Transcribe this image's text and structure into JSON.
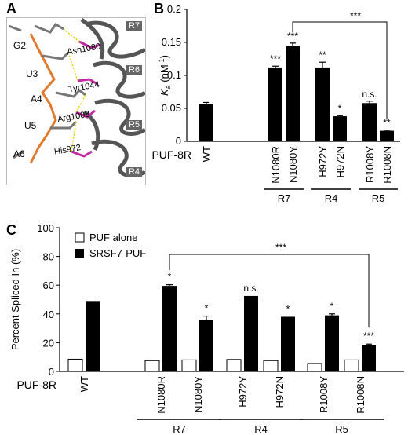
{
  "panels": {
    "a": {
      "letter": "A"
    },
    "b": {
      "letter": "B"
    },
    "c": {
      "letter": "C"
    }
  },
  "structure": {
    "nucleotides": [
      "G2",
      "U3",
      "A4",
      "U5",
      "A6"
    ],
    "residues": [
      "Asn1080",
      "Tyr1044",
      "Arg1008",
      "His972"
    ],
    "repeats": [
      "R7",
      "R6",
      "R5",
      "R4"
    ]
  },
  "colors": {
    "bar_black": "#000000",
    "bar_white": "#ffffff",
    "rna_orange": "#e07a2f",
    "residue_magenta": "#c22aa3",
    "ribbon_gray": "#555555",
    "hbond_yellow": "#e8d700"
  },
  "chart_data": [
    {
      "id": "B",
      "type": "bar",
      "ylabel_main": "K",
      "ylabel_sub": "a",
      "ylabel_rest": " (nM",
      "ylabel_sup": "-1",
      "ylabel_close": ")",
      "ylim": [
        0,
        0.2
      ],
      "yticks": [
        "0",
        "0.05",
        "0.1",
        "0.15",
        "0.2"
      ],
      "row_label": "PUF-8R",
      "categories": [
        "WT",
        "N1080R",
        "N1080Y",
        "H972Y",
        "H972N",
        "R1008Y",
        "R1008N"
      ],
      "values": [
        0.056,
        0.112,
        0.145,
        0.112,
        0.038,
        0.058,
        0.016
      ],
      "errors": [
        0.003,
        0.002,
        0.004,
        0.008,
        0.001,
        0.003,
        0.001
      ],
      "significance": [
        "",
        "***",
        "***",
        "**",
        "*",
        "n.s.",
        "**"
      ],
      "groups": [
        {
          "label": "R7",
          "from": 1,
          "to": 2
        },
        {
          "label": "R4",
          "from": 3,
          "to": 4
        },
        {
          "label": "R5",
          "from": 5,
          "to": 6
        }
      ],
      "bracket": {
        "from": 2,
        "to": 6,
        "label": "***"
      }
    },
    {
      "id": "C",
      "type": "bar",
      "ylabel": "Percent Spliced In (%)",
      "ylim": [
        0,
        100
      ],
      "yticks": [
        "0",
        "20",
        "40",
        "60",
        "80",
        "100"
      ],
      "row_label": "PUF-8R",
      "categories": [
        "WT",
        "N1080R",
        "N1080Y",
        "H972Y",
        "H972N",
        "R1008Y",
        "R1008N"
      ],
      "series": [
        {
          "name": "PUF alone",
          "values": [
            8.5,
            7.5,
            8.0,
            8.3,
            7.5,
            5.5,
            8.0
          ],
          "errors": [
            0,
            0,
            0,
            0,
            0,
            0,
            0
          ]
        },
        {
          "name": "SRSF7-PUF",
          "values": [
            49,
            59.5,
            36,
            52.5,
            38,
            39,
            18.5
          ],
          "errors": [
            0,
            0.8,
            2.5,
            0,
            0,
            1.0,
            0.5
          ]
        }
      ],
      "significance": [
        "",
        "*",
        "*",
        "n.s.",
        "*",
        "*",
        "***"
      ],
      "groups": [
        {
          "label": "R7",
          "from": 1,
          "to": 2
        },
        {
          "label": "R4",
          "from": 3,
          "to": 4
        },
        {
          "label": "R5",
          "from": 5,
          "to": 6
        }
      ],
      "bracket": {
        "from": 1,
        "to": 6,
        "label": "***"
      },
      "legend_position": "top-left"
    }
  ]
}
